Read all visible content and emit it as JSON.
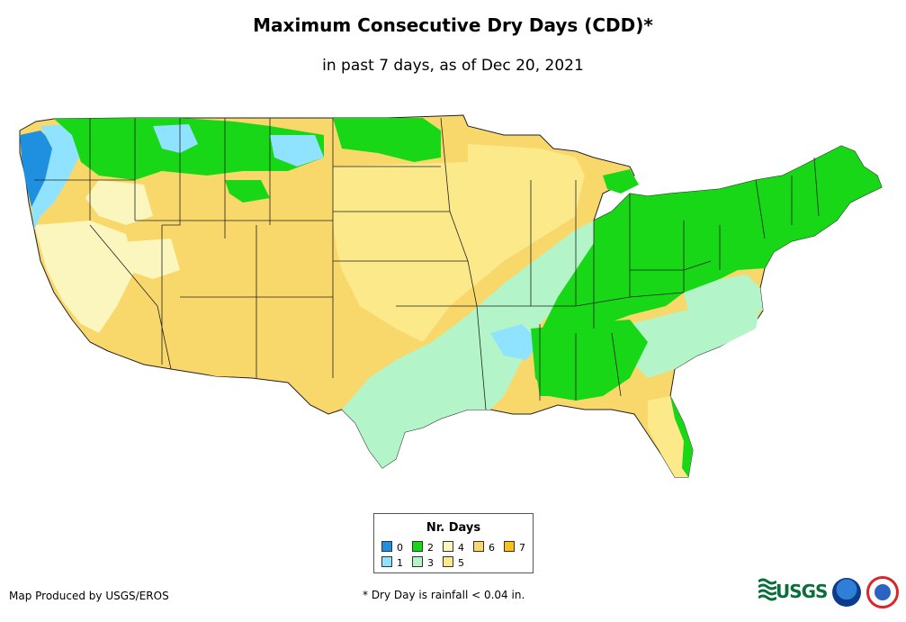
{
  "title": "Maximum Consecutive Dry Days (CDD)*",
  "subtitle": "in past 7 days, as of Dec 20, 2021",
  "legend": {
    "title": "Nr. Days",
    "items": [
      {
        "label": "0",
        "color": "#1f8fe0"
      },
      {
        "label": "1",
        "color": "#8fe3ff"
      },
      {
        "label": "2",
        "color": "#17d717"
      },
      {
        "label": "3",
        "color": "#b3f5c8"
      },
      {
        "label": "4",
        "color": "#fbf6bd"
      },
      {
        "label": "5",
        "color": "#fbe98a"
      },
      {
        "label": "6",
        "color": "#f8d86a"
      },
      {
        "label": "7",
        "color": "#f7c21b"
      }
    ]
  },
  "footer": {
    "producer": "Map Produced by USGS/EROS",
    "note": "* Dry Day is rainfall < 0.04 in."
  },
  "logos": {
    "usgs_text": "USGS"
  }
}
